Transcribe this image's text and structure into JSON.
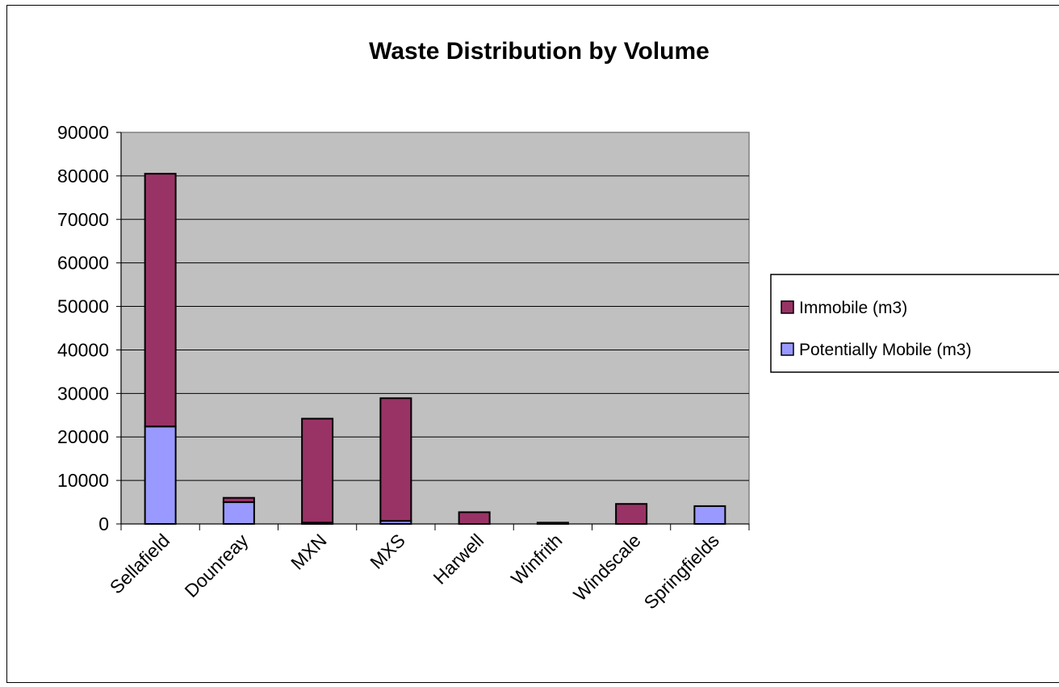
{
  "chart_data": {
    "type": "bar",
    "stacked": true,
    "title": "Waste Distribution by Volume",
    "xlabel": "",
    "ylabel": "",
    "categories": [
      "Sellafield",
      "Dounreay",
      "MXN",
      "MXS",
      "Harwell",
      "Winfrith",
      "Windscale",
      "Springfields"
    ],
    "series": [
      {
        "name": "Potentially Mobile (m3)",
        "color": "#9999ff",
        "values": [
          22400,
          5000,
          300,
          700,
          0,
          0,
          0,
          4100
        ]
      },
      {
        "name": "Immobile (m3)",
        "color": "#993366",
        "values": [
          58100,
          1000,
          23900,
          28200,
          2700,
          300,
          4600,
          0
        ]
      }
    ],
    "ylim": [
      0,
      90000
    ],
    "yticks": [
      "0",
      "10000",
      "20000",
      "30000",
      "40000",
      "50000",
      "60000",
      "70000",
      "80000",
      "90000"
    ],
    "grid": true,
    "plot_background": "#c0c0c0",
    "legend_position": "right"
  }
}
